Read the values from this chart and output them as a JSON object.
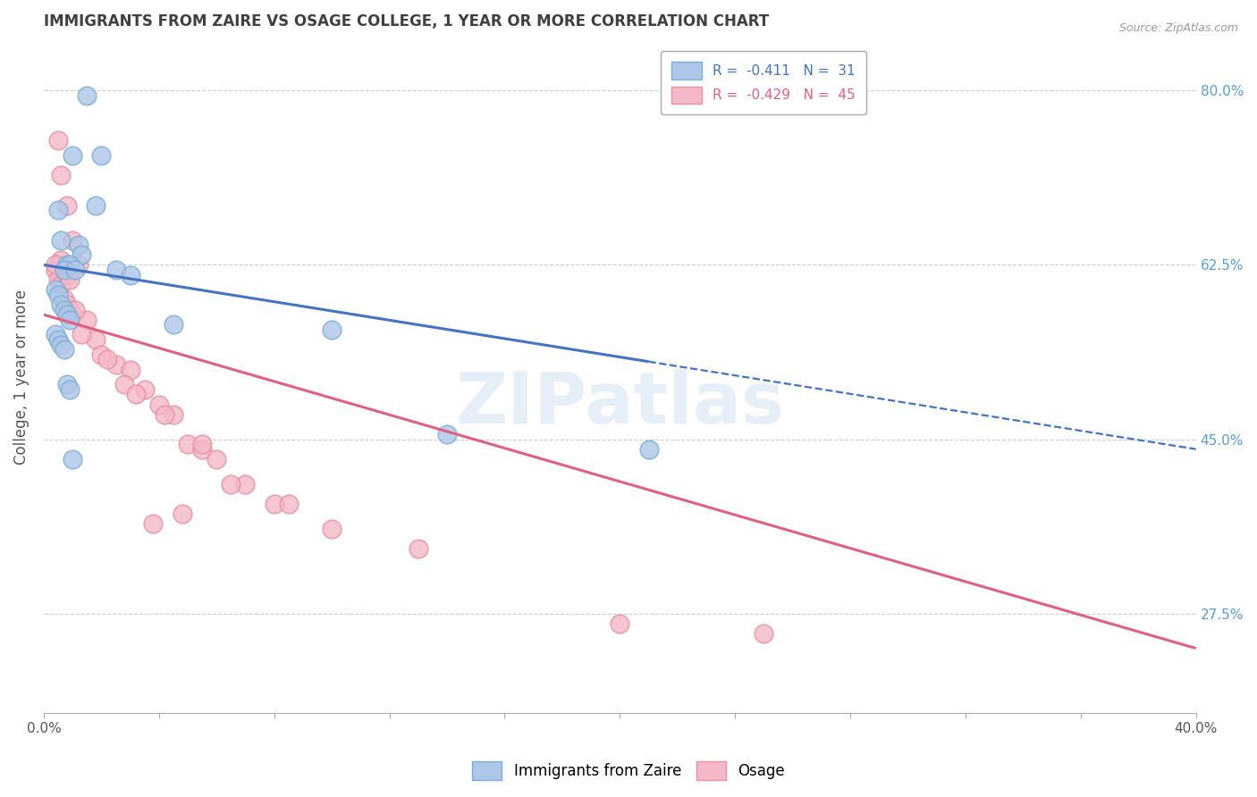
{
  "title": "IMMIGRANTS FROM ZAIRE VS OSAGE COLLEGE, 1 YEAR OR MORE CORRELATION CHART",
  "source": "Source: ZipAtlas.com",
  "ylabel": "College, 1 year or more",
  "right_yticks": [
    27.5,
    45.0,
    62.5,
    80.0
  ],
  "right_ytick_labels": [
    "27.5%",
    "45.0%",
    "62.5%",
    "80.0%"
  ],
  "xmin": 0.0,
  "xmax": 40.0,
  "ymin": 17.5,
  "ymax": 85.0,
  "watermark": "ZIPatlas",
  "blue_color": "#aec6e8",
  "pink_color": "#f4b8c8",
  "blue_edge": "#7aaed6",
  "pink_edge": "#e88fa0",
  "blue_line_color": "#4472c4",
  "pink_line_color": "#e06080",
  "grid_color": "#cccccc",
  "background_color": "#ffffff",
  "title_color": "#404040",
  "axis_label_color": "#555555",
  "right_tick_color": "#5b9bd5",
  "blue_scatter_x": [
    1.5,
    2.0,
    1.0,
    1.8,
    0.5,
    0.6,
    1.2,
    1.3,
    0.8,
    0.9,
    0.7,
    1.1,
    2.5,
    3.0,
    0.4,
    0.5,
    0.6,
    0.7,
    0.8,
    0.9,
    4.5,
    10.0,
    0.4,
    0.5,
    0.6,
    0.7,
    0.8,
    0.9,
    14.0,
    21.0,
    1.0
  ],
  "blue_scatter_y": [
    79.5,
    73.5,
    73.5,
    68.5,
    68.0,
    65.0,
    64.5,
    63.5,
    62.5,
    62.5,
    62.0,
    62.0,
    62.0,
    61.5,
    60.0,
    59.5,
    58.5,
    58.0,
    57.5,
    57.0,
    56.5,
    56.0,
    55.5,
    55.0,
    54.5,
    54.0,
    50.5,
    50.0,
    45.5,
    44.0,
    43.0
  ],
  "pink_scatter_x": [
    0.5,
    0.6,
    0.8,
    1.0,
    1.2,
    0.4,
    0.5,
    0.6,
    0.7,
    0.8,
    0.9,
    1.0,
    1.5,
    1.8,
    2.0,
    2.5,
    3.0,
    3.5,
    4.0,
    4.5,
    5.0,
    5.5,
    6.0,
    7.0,
    8.0,
    0.6,
    0.7,
    0.8,
    0.9,
    1.1,
    1.3,
    2.2,
    2.8,
    3.2,
    4.2,
    5.5,
    6.5,
    8.5,
    13.0,
    20.0,
    25.0,
    4.8,
    10.0,
    3.8,
    0.4
  ],
  "pink_scatter_y": [
    75.0,
    71.5,
    68.5,
    65.0,
    62.5,
    62.0,
    61.0,
    60.5,
    59.0,
    58.5,
    58.0,
    57.5,
    57.0,
    55.0,
    53.5,
    52.5,
    52.0,
    50.0,
    48.5,
    47.5,
    44.5,
    44.0,
    43.0,
    40.5,
    38.5,
    63.0,
    62.0,
    61.5,
    61.0,
    58.0,
    55.5,
    53.0,
    50.5,
    49.5,
    47.5,
    44.5,
    40.5,
    38.5,
    34.0,
    26.5,
    25.5,
    37.5,
    36.0,
    36.5,
    62.5
  ],
  "blue_line_x0": 0.0,
  "blue_line_y0": 62.5,
  "blue_line_x1": 40.0,
  "blue_line_y1": 44.0,
  "blue_dash_start_x": 21.0,
  "pink_line_x0": 0.0,
  "pink_line_y0": 57.5,
  "pink_line_x1": 40.0,
  "pink_line_y1": 24.0
}
